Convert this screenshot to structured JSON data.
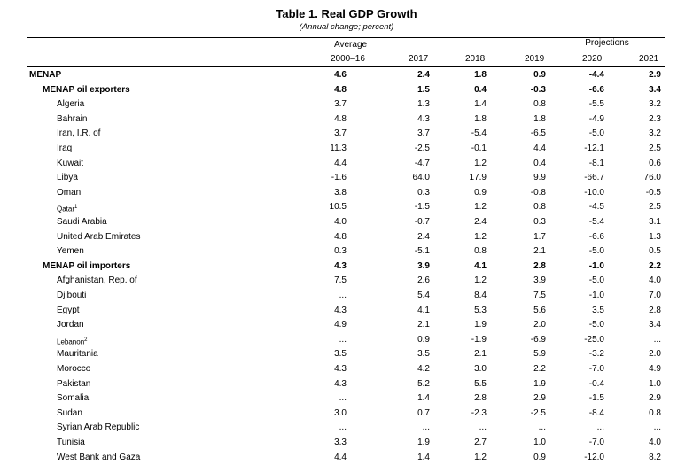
{
  "title": "Table 1. Real GDP Growth",
  "subtitle": "(Annual change; percent)",
  "header": {
    "projections": "Projections",
    "average_top": "Average",
    "columns": [
      "2000–16",
      "2017",
      "2018",
      "2019",
      "2020",
      "2021"
    ]
  },
  "rows": [
    {
      "name": "MENAP",
      "type": "region",
      "values": [
        "4.6",
        "2.4",
        "1.8",
        "0.9",
        "-4.4",
        "2.9"
      ]
    },
    {
      "name": "MENAP oil exporters",
      "type": "group",
      "values": [
        "4.8",
        "1.5",
        "0.4",
        "-0.3",
        "-6.6",
        "3.4"
      ]
    },
    {
      "name": "Algeria",
      "type": "country",
      "values": [
        "3.7",
        "1.3",
        "1.4",
        "0.8",
        "-5.5",
        "3.2"
      ]
    },
    {
      "name": "Bahrain",
      "type": "country",
      "values": [
        "4.8",
        "4.3",
        "1.8",
        "1.8",
        "-4.9",
        "2.3"
      ]
    },
    {
      "name": "Iran, I.R. of",
      "type": "country",
      "values": [
        "3.7",
        "3.7",
        "-5.4",
        "-6.5",
        "-5.0",
        "3.2"
      ]
    },
    {
      "name": "Iraq",
      "type": "country",
      "values": [
        "11.3",
        "-2.5",
        "-0.1",
        "4.4",
        "-12.1",
        "2.5"
      ]
    },
    {
      "name": "Kuwait",
      "type": "country",
      "values": [
        "4.4",
        "-4.7",
        "1.2",
        "0.4",
        "-8.1",
        "0.6"
      ]
    },
    {
      "name": "Libya",
      "type": "country",
      "values": [
        "-1.6",
        "64.0",
        "17.9",
        "9.9",
        "-66.7",
        "76.0"
      ]
    },
    {
      "name": "Oman",
      "type": "country",
      "values": [
        "3.8",
        "0.3",
        "0.9",
        "-0.8",
        "-10.0",
        "-0.5"
      ]
    },
    {
      "name": "Qatar",
      "note": "1",
      "type": "country",
      "small": true,
      "values": [
        "10.5",
        "-1.5",
        "1.2",
        "0.8",
        "-4.5",
        "2.5"
      ]
    },
    {
      "name": "Saudi Arabia",
      "type": "country",
      "values": [
        "4.0",
        "-0.7",
        "2.4",
        "0.3",
        "-5.4",
        "3.1"
      ]
    },
    {
      "name": "United Arab Emirates",
      "type": "country",
      "values": [
        "4.8",
        "2.4",
        "1.2",
        "1.7",
        "-6.6",
        "1.3"
      ]
    },
    {
      "name": "Yemen",
      "type": "country",
      "values": [
        "0.3",
        "-5.1",
        "0.8",
        "2.1",
        "-5.0",
        "0.5"
      ]
    },
    {
      "name": "MENAP oil importers",
      "type": "group",
      "values": [
        "4.3",
        "3.9",
        "4.1",
        "2.8",
        "-1.0",
        "2.2"
      ]
    },
    {
      "name": "Afghanistan, Rep. of",
      "type": "country",
      "values": [
        "7.5",
        "2.6",
        "1.2",
        "3.9",
        "-5.0",
        "4.0"
      ]
    },
    {
      "name": "Djibouti",
      "type": "country",
      "values": [
        "...",
        "5.4",
        "8.4",
        "7.5",
        "-1.0",
        "7.0"
      ]
    },
    {
      "name": "Egypt",
      "type": "country",
      "values": [
        "4.3",
        "4.1",
        "5.3",
        "5.6",
        "3.5",
        "2.8"
      ]
    },
    {
      "name": "Jordan",
      "type": "country",
      "values": [
        "4.9",
        "2.1",
        "1.9",
        "2.0",
        "-5.0",
        "3.4"
      ]
    },
    {
      "name": "Lebanon",
      "note": "2",
      "type": "country",
      "small": true,
      "values": [
        "...",
        "0.9",
        "-1.9",
        "-6.9",
        "-25.0",
        "..."
      ]
    },
    {
      "name": "Mauritania",
      "type": "country",
      "values": [
        "3.5",
        "3.5",
        "2.1",
        "5.9",
        "-3.2",
        "2.0"
      ]
    },
    {
      "name": "Morocco",
      "type": "country",
      "values": [
        "4.3",
        "4.2",
        "3.0",
        "2.2",
        "-7.0",
        "4.9"
      ]
    },
    {
      "name": "Pakistan",
      "type": "country",
      "values": [
        "4.3",
        "5.2",
        "5.5",
        "1.9",
        "-0.4",
        "1.0"
      ]
    },
    {
      "name": "Somalia",
      "type": "country",
      "values": [
        "...",
        "1.4",
        "2.8",
        "2.9",
        "-1.5",
        "2.9"
      ]
    },
    {
      "name": "Sudan",
      "type": "country",
      "values": [
        "3.0",
        "0.7",
        "-2.3",
        "-2.5",
        "-8.4",
        "0.8"
      ]
    },
    {
      "name": "Syrian Arab Republic",
      "type": "country",
      "values": [
        "...",
        "...",
        "...",
        "...",
        "...",
        "..."
      ]
    },
    {
      "name": "Tunisia",
      "type": "country",
      "values": [
        "3.3",
        "1.9",
        "2.7",
        "1.0",
        "-7.0",
        "4.0"
      ]
    },
    {
      "name": "West Bank and Gaza",
      "type": "country",
      "values": [
        "4.4",
        "1.4",
        "1.2",
        "0.9",
        "-12.0",
        "8.2"
      ]
    }
  ]
}
